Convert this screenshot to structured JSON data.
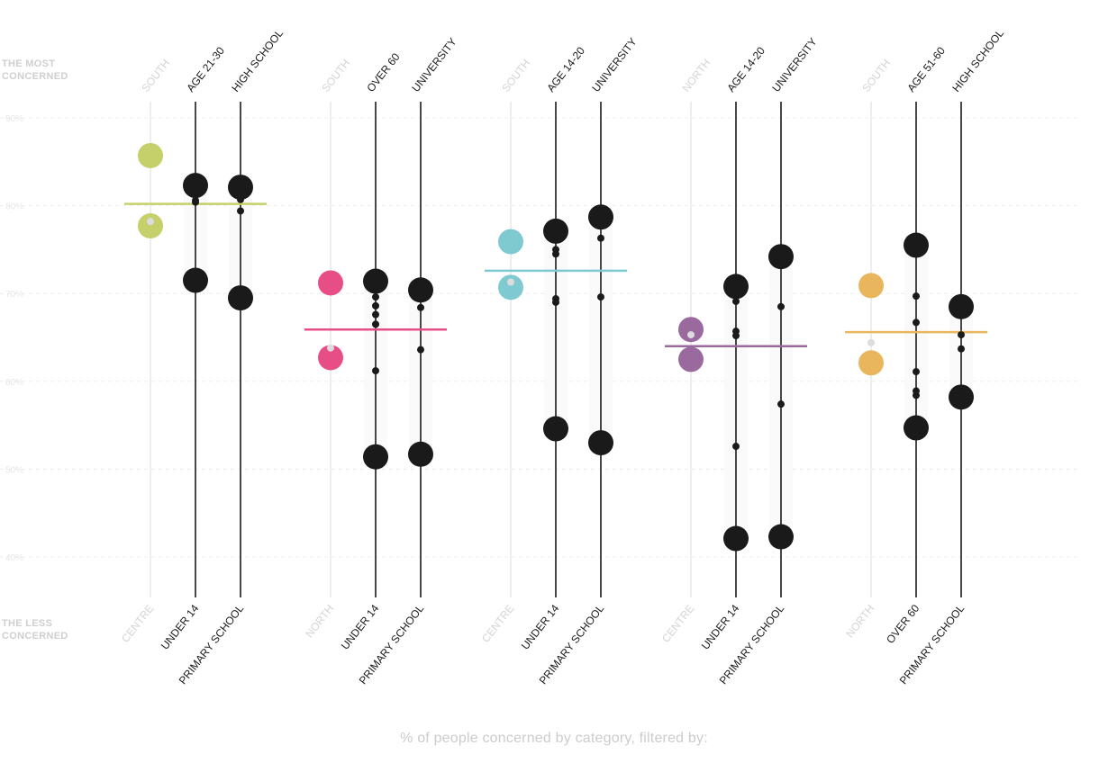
{
  "side_labels": {
    "top": [
      "THE MOST",
      "CONCERNED"
    ],
    "bottom": [
      "THE LESS",
      "CONCERNED"
    ]
  },
  "footer": "% of people concerned by category, filtered by:",
  "chart_data": {
    "type": "scatter",
    "title": "",
    "ylim": [
      36,
      92
    ],
    "yticks": [
      40,
      50,
      60,
      70,
      80,
      90
    ],
    "ytick_labels": [
      "40%",
      "50%",
      "60%",
      "70%",
      "80%",
      "90%"
    ],
    "grid": true,
    "colors": {
      "dark": "#1a1a1a",
      "light_line": "#dddddd",
      "light_text": "#d4d4d4",
      "small_light_dot": "#dcdcdc"
    },
    "groups": [
      {
        "color": "#c5d06b",
        "mean": 80.2,
        "columns": [
          {
            "top": "SOUTH",
            "bottom": "CENTRE",
            "muted": true,
            "big_top": 85.7,
            "big_bottom": 77.7,
            "small": [
              78.2
            ]
          },
          {
            "top": "AGE 21-30",
            "bottom": "UNDER 14",
            "muted": false,
            "big_top": 82.3,
            "big_bottom": 71.5,
            "small": [
              80.6,
              80.4
            ]
          },
          {
            "top": "HIGH SCHOOL",
            "bottom": "PRIMARY SCHOOL",
            "muted": false,
            "big_top": 82.1,
            "big_bottom": 69.5,
            "small": [
              80.7,
              79.4
            ]
          }
        ]
      },
      {
        "color": "#e84e86",
        "mean": 65.9,
        "columns": [
          {
            "top": "SOUTH",
            "bottom": "NORTH",
            "muted": true,
            "big_top": 71.2,
            "big_bottom": 62.7,
            "small": [
              63.8
            ]
          },
          {
            "top": "OVER 60",
            "bottom": "UNDER 14",
            "muted": false,
            "big_top": 71.4,
            "big_bottom": 51.4,
            "small": [
              69.6,
              68.6,
              67.6,
              66.5,
              61.2
            ]
          },
          {
            "top": "UNIVERSITY",
            "bottom": "PRIMARY SCHOOL",
            "muted": false,
            "big_top": 70.4,
            "big_bottom": 51.7,
            "small": [
              68.4,
              63.6
            ]
          }
        ]
      },
      {
        "color": "#7fcad1",
        "mean": 72.6,
        "columns": [
          {
            "top": "SOUTH",
            "bottom": "CENTRE",
            "muted": true,
            "big_top": 75.9,
            "big_bottom": 70.7,
            "small": [
              71.3
            ]
          },
          {
            "top": "AGE 14-20",
            "bottom": "UNDER 14",
            "muted": false,
            "big_top": 77.1,
            "big_bottom": 54.6,
            "small": [
              75.0,
              74.5,
              69.4,
              69.0
            ]
          },
          {
            "top": "UNIVERSITY",
            "bottom": "PRIMARY SCHOOL",
            "muted": false,
            "big_top": 78.7,
            "big_bottom": 53.0,
            "small": [
              76.3,
              69.6
            ]
          }
        ]
      },
      {
        "color": "#9a6a9e",
        "mean": 64.0,
        "columns": [
          {
            "top": "NORTH",
            "bottom": "CENTRE",
            "muted": true,
            "big_top": 65.9,
            "big_bottom": 62.5,
            "small": [
              65.3
            ]
          },
          {
            "top": "AGE 14-20",
            "bottom": "UNDER 14",
            "muted": false,
            "big_top": 70.8,
            "big_bottom": 42.1,
            "small": [
              70.2,
              69.1,
              65.7,
              65.2,
              52.6
            ]
          },
          {
            "top": "UNIVERSITY",
            "bottom": "PRIMARY SCHOOL",
            "muted": false,
            "big_top": 74.2,
            "big_bottom": 42.3,
            "small": [
              68.5,
              57.4
            ]
          }
        ]
      },
      {
        "color": "#e9b65e",
        "mean": 65.6,
        "columns": [
          {
            "top": "SOUTH",
            "bottom": "NORTH",
            "muted": true,
            "big_top": 70.9,
            "big_bottom": 62.1,
            "small": [
              64.4
            ]
          },
          {
            "top": "AGE 51-60",
            "bottom": "OVER 60",
            "muted": false,
            "big_top": 75.5,
            "big_bottom": 54.7,
            "small": [
              69.7,
              66.7,
              61.1,
              58.9,
              58.4
            ]
          },
          {
            "top": "HIGH SCHOOL",
            "bottom": "PRIMARY SCHOOL",
            "muted": false,
            "big_top": 68.5,
            "big_bottom": 58.2,
            "small": [
              65.3,
              63.7
            ]
          }
        ]
      }
    ]
  }
}
